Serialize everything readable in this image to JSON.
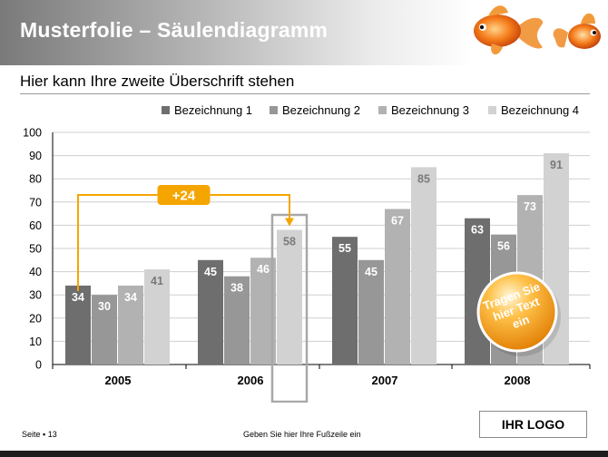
{
  "header": {
    "title": "Musterfolie – Säulendiagramm"
  },
  "subtitle": "Hier kann Ihre zweite Überschrift stehen",
  "footer": {
    "page": "Seite ▪ 13",
    "text": "Geben Sie hier Ihre Fußzeile ein",
    "logo": "IHR LOGO"
  },
  "colors": {
    "series": [
      "#6e6e6e",
      "#979797",
      "#b2b2b2",
      "#d2d2d2"
    ],
    "accent": "#f5a500",
    "badge_fill": "#f5a500",
    "highlight_box": "#a8a8a8",
    "header_start": "#7a7a7a"
  },
  "chart_data": {
    "type": "bar",
    "categories": [
      "2005",
      "2006",
      "2007",
      "2008"
    ],
    "series": [
      {
        "name": "Bezeichnung 1",
        "values": [
          34,
          45,
          55,
          63
        ]
      },
      {
        "name": "Bezeichnung 2",
        "values": [
          30,
          38,
          45,
          56
        ]
      },
      {
        "name": "Bezeichnung 3",
        "values": [
          34,
          46,
          67,
          73
        ]
      },
      {
        "name": "Bezeichnung 4",
        "values": [
          41,
          58,
          85,
          91
        ]
      }
    ],
    "ylim": [
      0,
      100
    ],
    "yticks": [
      0,
      10,
      20,
      30,
      40,
      50,
      60,
      70,
      80,
      90,
      100
    ],
    "grid": true,
    "legend_position": "top-right",
    "data_labels": true,
    "annotations": [
      {
        "text": "+24",
        "from": {
          "category": "2005",
          "series": "Bezeichnung 1"
        },
        "to": {
          "category": "2006",
          "series": "Bezeichnung 4"
        }
      }
    ],
    "highlight": {
      "category": "2006",
      "series": "Bezeichnung 4"
    },
    "callout": "Tragen Sie hier Text ein"
  }
}
